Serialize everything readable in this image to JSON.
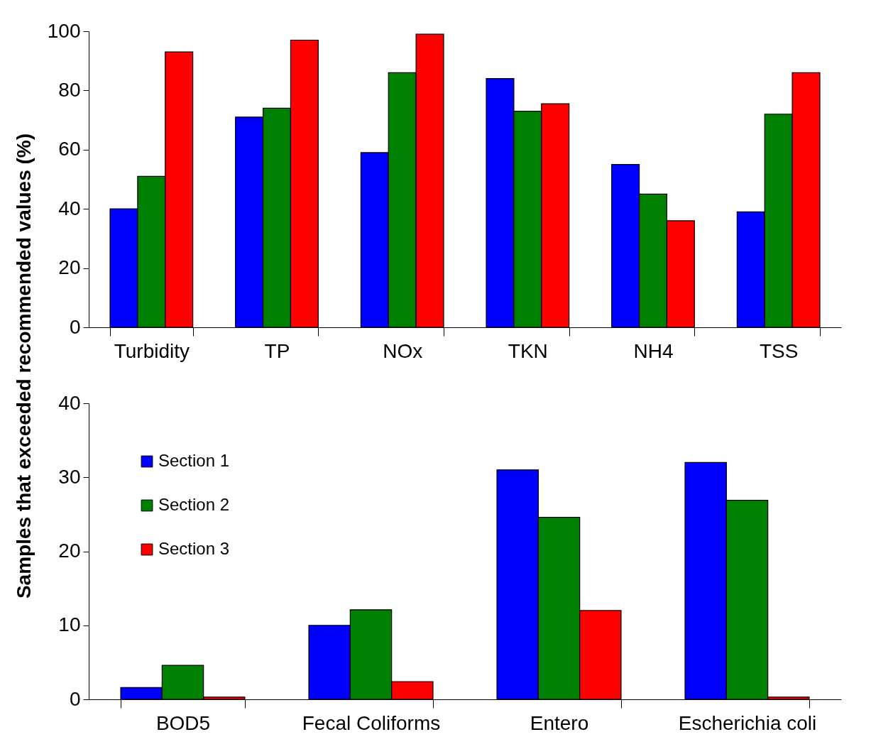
{
  "chart_data": [
    {
      "type": "bar",
      "ylabel": "Samples that exceeded recommended values (%)",
      "categories": [
        "Turbidity",
        "TP",
        "NOx",
        "TKN",
        "NH4",
        "TSS"
      ],
      "series": [
        {
          "color": "#0000ff",
          "values": [
            40,
            71,
            59,
            84,
            55,
            39
          ]
        },
        {
          "color": "#008000",
          "values": [
            51,
            74,
            86,
            73,
            45,
            72
          ]
        },
        {
          "color": "#ff0000",
          "values": [
            93,
            97,
            99,
            75.5,
            36,
            86
          ]
        }
      ],
      "ylim": [
        0,
        100
      ],
      "yticks": [
        0,
        20,
        40,
        60,
        80,
        100
      ],
      "grid": false,
      "legend": false
    },
    {
      "type": "bar",
      "categories": [
        "BOD5",
        "Fecal Coliforms",
        "Entero",
        "Escherichia coli"
      ],
      "series": [
        {
          "name": "Section 1",
          "color": "#0000ff",
          "values": [
            1.6,
            10,
            31,
            32
          ]
        },
        {
          "name": "Section 2",
          "color": "#008000",
          "values": [
            4.6,
            12.1,
            24.6,
            26.9
          ]
        },
        {
          "name": "Section 3",
          "color": "#ff0000",
          "values": [
            0.3,
            2.4,
            12,
            0.3
          ]
        }
      ],
      "ylim": [
        0,
        40
      ],
      "yticks": [
        0,
        10,
        20,
        30,
        40
      ],
      "grid": false,
      "legend": "top left"
    }
  ]
}
